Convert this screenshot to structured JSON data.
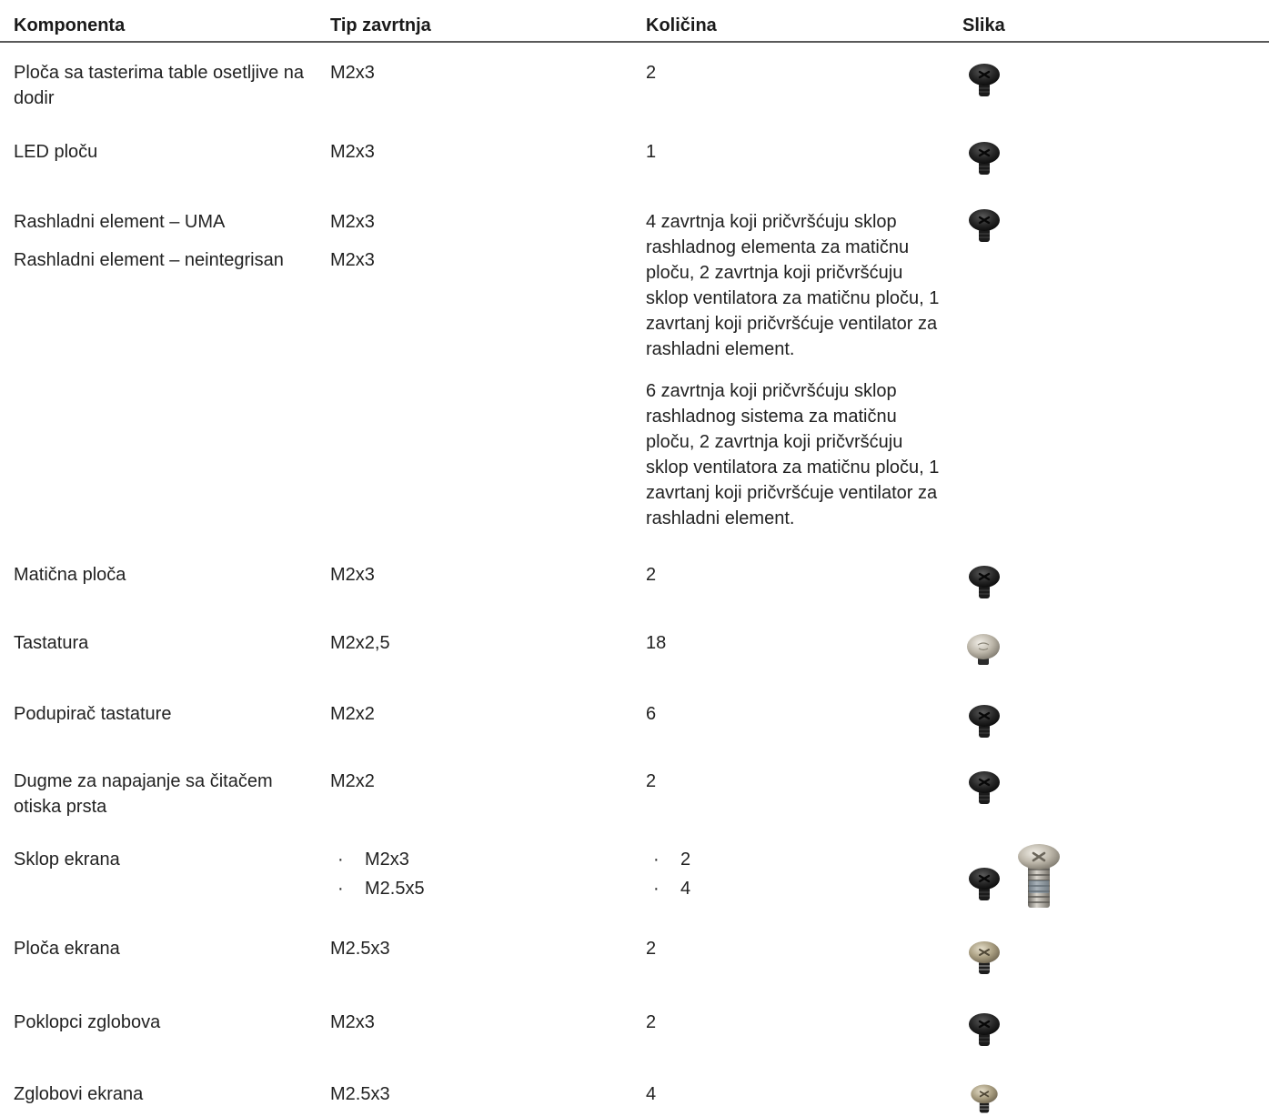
{
  "header": {
    "component": "Komponenta",
    "screw_type": "Tip zavrtnja",
    "quantity": "Količina",
    "image": "Slika"
  },
  "rows": [
    {
      "component": "Ploča sa tasterima table osetljive na dodir",
      "screw": "M2x3",
      "qty": "2",
      "image": "black-screw-icon"
    },
    {
      "component": "LED ploču",
      "screw": "M2x3",
      "qty": "1",
      "image": "black-screw-icon"
    },
    {
      "components": [
        "Rashladni element – UMA",
        "Rashladni element – neintegrisan"
      ],
      "screws": [
        "M2x3",
        "M2x3"
      ],
      "qty_paragraphs": [
        "4 zavrtnja koji pričvršćuju sklop rashladnog elementa za matičnu ploču, 2 zavrtnja koji pričvršćuju sklop ventilatora za matičnu ploču, 1 zavrtanj koji pričvršćuje ventilator za rashladni element.",
        "6 zavrtnja koji pričvršćuju sklop rashladnog sistema za matičnu ploču, 2 zavrtnja koji pričvršćuju sklop ventilatora za matičnu ploču, 1 zavrtanj koji pričvršćuje ventilator za rashladni element."
      ],
      "image": "black-screw-icon"
    },
    {
      "component": "Matična ploča",
      "screw": "M2x3",
      "qty": "2",
      "image": "black-screw-icon"
    },
    {
      "component": "Tastatura",
      "screw": "M2x2,5",
      "qty": "18",
      "image": "silver-flat-screw-icon"
    },
    {
      "component": "Podupirač tastature",
      "screw": "M2x2",
      "qty": "6",
      "image": "black-screw-icon"
    },
    {
      "component": "Dugme za napajanje sa čitačem otiska prsta",
      "screw": "M2x2",
      "qty": "2",
      "image": "black-screw-icon"
    },
    {
      "component": "Sklop ekrana",
      "bullet_glyph": "·",
      "screw_list": [
        "M2x3",
        "M2.5x5"
      ],
      "qty_list": [
        "2",
        "4"
      ],
      "images": [
        "black-screw-icon",
        "long-silver-screw-icon"
      ]
    },
    {
      "component": "Ploča ekrana",
      "screw": "M2.5x3",
      "qty": "2",
      "image": "gold-screw-icon"
    },
    {
      "component": "Poklopci zglobova",
      "screw": "M2x3",
      "qty": "2",
      "image": "black-screw-icon"
    },
    {
      "component": "Zglobovi ekrana",
      "screw": "M2.5x3",
      "qty": "4",
      "image": "gold-screw-icon"
    }
  ],
  "colors": {
    "text": "#222222",
    "header_rule": "#5a5a5a",
    "screw_black": "#1e1e1e",
    "screw_silver": "#b9b4a8",
    "screw_gold": "#a89c7e"
  }
}
